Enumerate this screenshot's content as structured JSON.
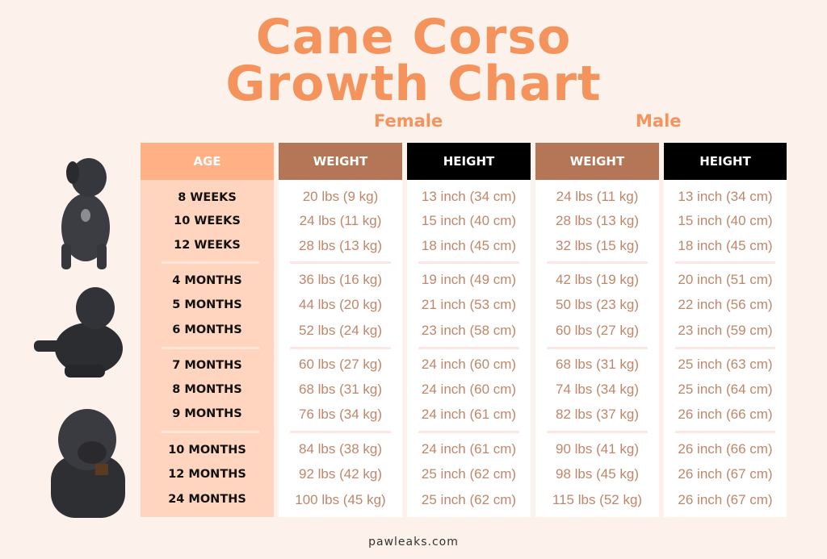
{
  "title_line1": "Cane Corso",
  "title_line2": "Growth Chart",
  "labels": {
    "female": "Female",
    "male": "Male"
  },
  "footer": "pawleaks.com",
  "colors": {
    "title": "#f4935c",
    "age_header": "#ffb085",
    "age_body": "#ffd5bf",
    "weight_header": "#b47656",
    "height_header": "#000000",
    "value_text": "#c0866a",
    "background": "#fdf1eb"
  },
  "chart_data": {
    "type": "table",
    "title": "Cane Corso Growth Chart",
    "columns": [
      "AGE",
      "WEIGHT",
      "HEIGHT",
      "WEIGHT",
      "HEIGHT"
    ],
    "column_groups": [
      {
        "name": "Female",
        "columns": [
          "WEIGHT",
          "HEIGHT"
        ]
      },
      {
        "name": "Male",
        "columns": [
          "WEIGHT",
          "HEIGHT"
        ]
      }
    ],
    "ages": [
      "8 WEEKS",
      "10 WEEKS",
      "12 WEEKS",
      "4 MONTHS",
      "5 MONTHS",
      "6 MONTHS",
      "7 MONTHS",
      "8 MONTHS",
      "9 MONTHS",
      "10 MONTHS",
      "12 MONTHS",
      "24 MONTHS"
    ],
    "female_weight": [
      "20 lbs (9 kg)",
      "24 lbs (11 kg)",
      "28 lbs (13 kg)",
      "36 lbs (16 kg)",
      "44 lbs (20 kg)",
      "52 lbs (24 kg)",
      "60 lbs (27 kg)",
      "68 lbs (31 kg)",
      "76 lbs (34 kg)",
      "84 lbs (38 kg)",
      "92 lbs (42 kg)",
      "100 lbs (45 kg)"
    ],
    "female_height": [
      "13 inch (34 cm)",
      "15 inch (40 cm)",
      "18 inch (45 cm)",
      "19 inch (49 cm)",
      "21 inch (53 cm)",
      "23 inch (58 cm)",
      "24 inch (60 cm)",
      "24 inch (60 cm)",
      "24 inch (61 cm)",
      "24 inch (61 cm)",
      "25 inch (62 cm)",
      "25 inch (62 cm)"
    ],
    "male_weight": [
      "24 lbs (11 kg)",
      "28 lbs (13 kg)",
      "32 lbs (15 kg)",
      "42 lbs (19 kg)",
      "50 lbs (23 kg)",
      "60 lbs (27 kg)",
      "68 lbs (31 kg)",
      "74 lbs (34 kg)",
      "82 lbs (37 kg)",
      "90 lbs (41 kg)",
      "98 lbs (45 kg)",
      "115 lbs (52 kg)"
    ],
    "male_height": [
      "13 inch (34 cm)",
      "15 inch (40 cm)",
      "18 inch (45 cm)",
      "20 inch (51 cm)",
      "22 inch (56 cm)",
      "23 inch (59 cm)",
      "25 inch (63 cm)",
      "25 inch (64 cm)",
      "26 inch (66 cm)",
      "26 inch (66 cm)",
      "26 inch (67 cm)",
      "26 inch (67 cm)"
    ]
  }
}
